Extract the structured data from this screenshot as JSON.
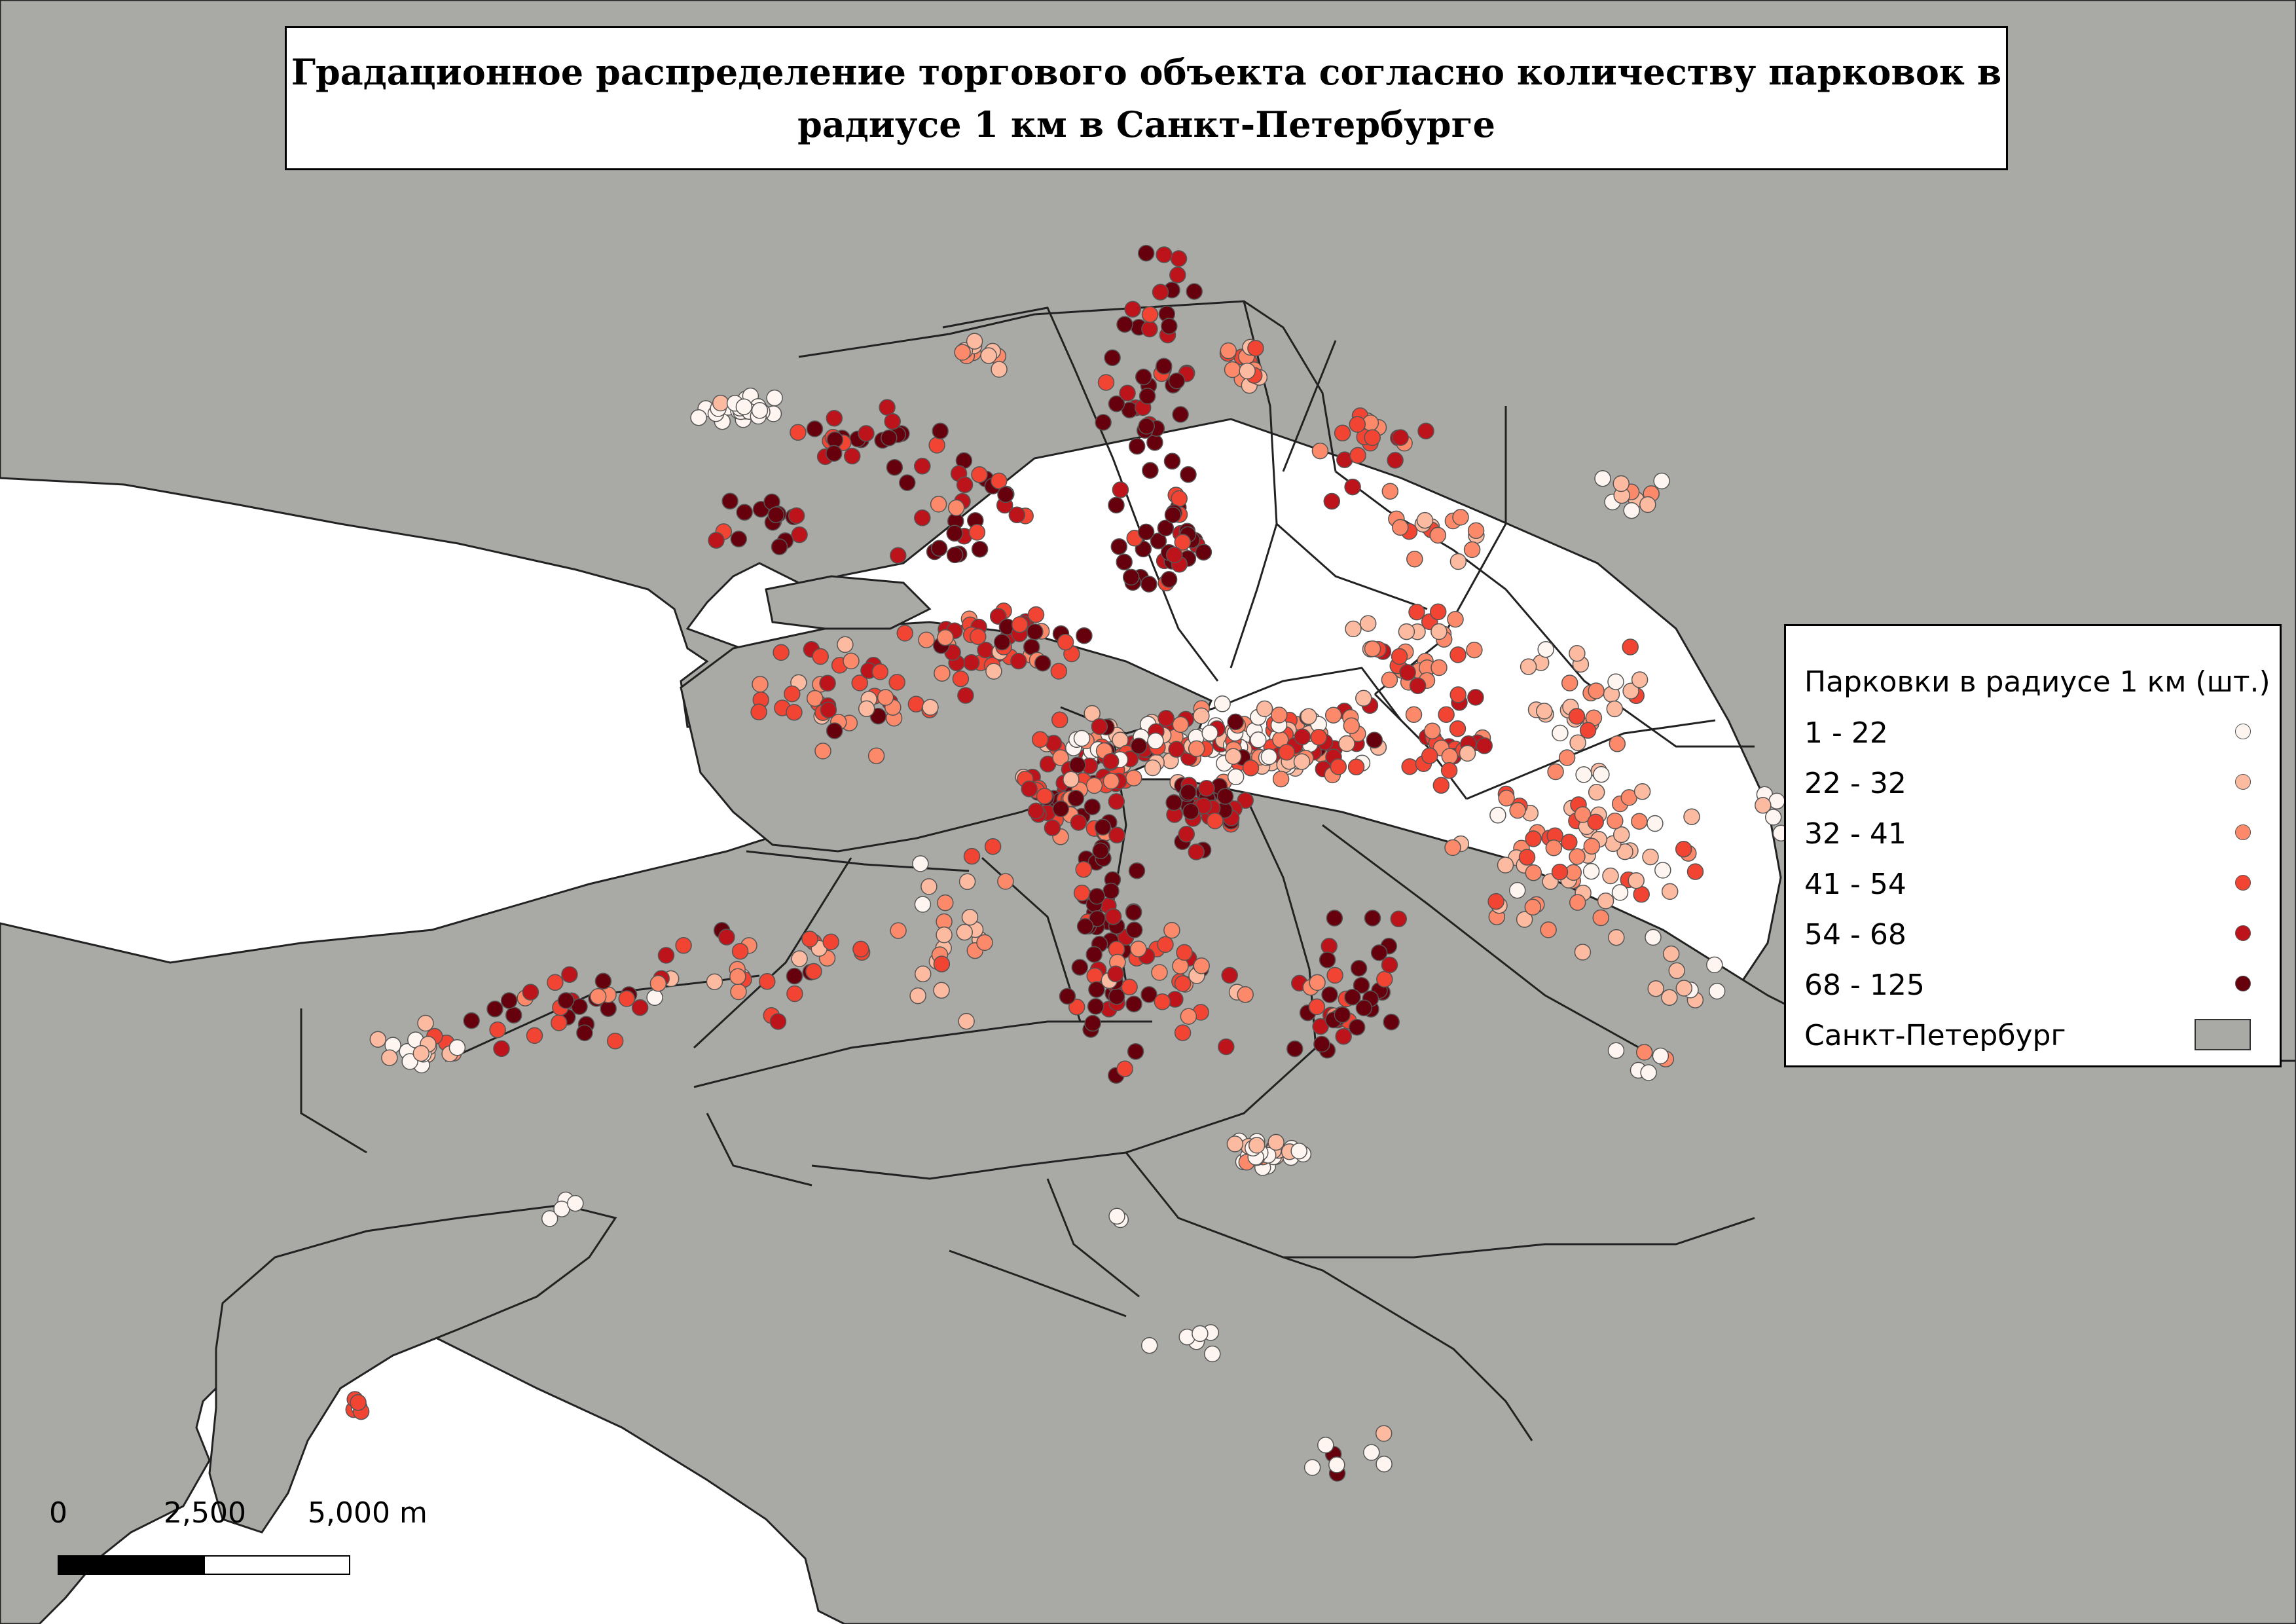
{
  "title": {
    "line1": "Градационное распределение торгового объекта согласно количеству парковок в",
    "line2": "радиусе 1 км в Санкт-Петербурге"
  },
  "legend": {
    "title": "Парковки в радиусе 1 км (шт.)",
    "classes": [
      {
        "label": "1 - 22",
        "color": "#fff5f0"
      },
      {
        "label": "22 - 32",
        "color": "#fcbba1"
      },
      {
        "label": "32 - 41",
        "color": "#fc8a6a"
      },
      {
        "label": "41 - 54",
        "color": "#f14432"
      },
      {
        "label": "54 - 68",
        "color": "#bc141a"
      },
      {
        "label": "68 - 125",
        "color": "#67000d"
      }
    ],
    "area_label": "Санкт-Петербург",
    "area_color": "#a9aaa6"
  },
  "scale_bar": {
    "labels": [
      "0",
      "2,500",
      "5,000 m"
    ]
  }
}
